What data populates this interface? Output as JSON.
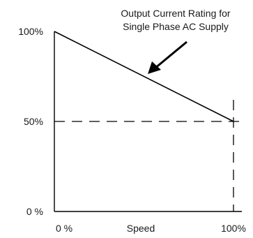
{
  "chart_data": {
    "type": "line",
    "title": "",
    "xlabel": "Speed",
    "ylabel": "",
    "xlim": [
      0,
      100
    ],
    "ylim": [
      0,
      100
    ],
    "x_tick_labels": [
      {
        "value": 0,
        "label": "0 %"
      },
      {
        "value": 100,
        "label": "100%"
      }
    ],
    "y_tick_labels": [
      {
        "value": 0,
        "label": "0 %"
      },
      {
        "value": 50,
        "label": "50%"
      },
      {
        "value": 100,
        "label": "100%"
      }
    ],
    "series": [
      {
        "x": [
          0,
          100
        ],
        "y": [
          100,
          50
        ],
        "style": "solid",
        "color": "#000000"
      }
    ],
    "reference_lines": [
      {
        "orientation": "horizontal",
        "value": 50,
        "style": "dashed",
        "color": "#000000"
      },
      {
        "orientation": "vertical",
        "value": 100,
        "style": "dashed",
        "color": "#000000"
      }
    ],
    "annotations": [
      {
        "lines": [
          "Output Current Rating for",
          "Single Phase AC Supply"
        ],
        "points_to": {
          "x": 55,
          "y": 72.5
        }
      }
    ],
    "grid": false,
    "legend": "none"
  }
}
